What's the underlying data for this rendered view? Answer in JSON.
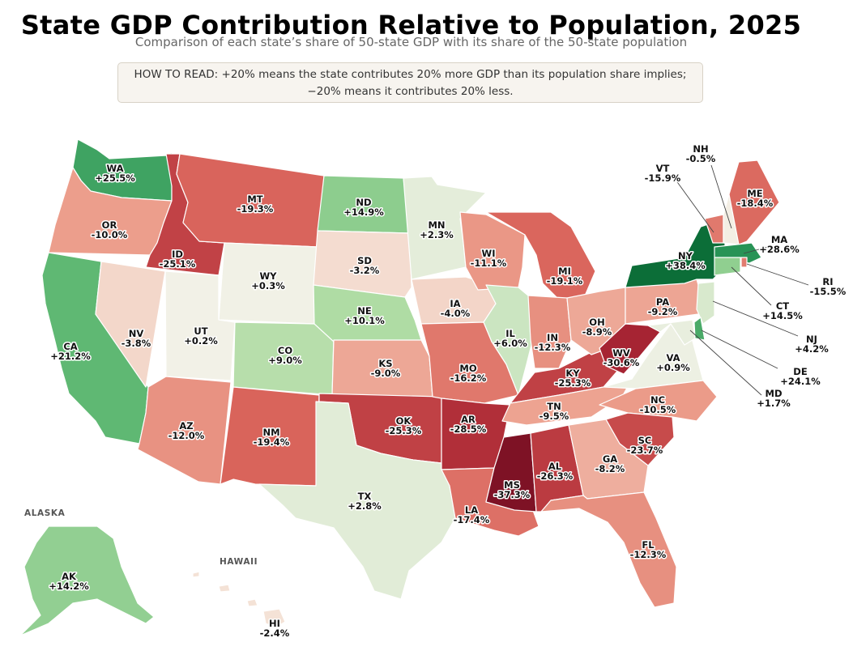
{
  "title": "State GDP Contribution Relative to Population, 2025",
  "subtitle": "Comparison of each state’s share of 50-state GDP with its share of the 50-state population",
  "how_to_read": {
    "line1": "HOW TO READ:  +20% means the state contributes 20% more GDP than its population share implies;",
    "line2": "−20% means it contributes 20% less."
  },
  "insets": {
    "alaska": "ALASKA",
    "hawaii": "HAWAII"
  },
  "colors": {
    "strong_negative": "#8b1a2b",
    "negative": "#d96459",
    "mild_negative": "#eea898",
    "neutral": "#f2efe6",
    "mild_positive": "#b9dfa8",
    "positive": "#5fb874",
    "strong_positive": "#0e6b35"
  },
  "states": [
    {
      "abbr": "WA",
      "label": "+25.5%",
      "value": 25.5
    },
    {
      "abbr": "OR",
      "label": "-10.0%",
      "value": -10.0
    },
    {
      "abbr": "CA",
      "label": "+21.2%",
      "value": 21.2
    },
    {
      "abbr": "ID",
      "label": "-25.1%",
      "value": -25.1
    },
    {
      "abbr": "NV",
      "label": "-3.8%",
      "value": -3.8
    },
    {
      "abbr": "MT",
      "label": "-19.3%",
      "value": -19.3
    },
    {
      "abbr": "WY",
      "label": "+0.3%",
      "value": 0.3
    },
    {
      "abbr": "UT",
      "label": "+0.2%",
      "value": 0.2
    },
    {
      "abbr": "AZ",
      "label": "-12.0%",
      "value": -12.0
    },
    {
      "abbr": "CO",
      "label": "+9.0%",
      "value": 9.0
    },
    {
      "abbr": "NM",
      "label": "-19.4%",
      "value": -19.4
    },
    {
      "abbr": "ND",
      "label": "+14.9%",
      "value": 14.9
    },
    {
      "abbr": "SD",
      "label": "-3.2%",
      "value": -3.2
    },
    {
      "abbr": "NE",
      "label": "+10.1%",
      "value": 10.1
    },
    {
      "abbr": "KS",
      "label": "-9.0%",
      "value": -9.0
    },
    {
      "abbr": "OK",
      "label": "-25.3%",
      "value": -25.3
    },
    {
      "abbr": "TX",
      "label": "+2.8%",
      "value": 2.8
    },
    {
      "abbr": "MN",
      "label": "+2.3%",
      "value": 2.3
    },
    {
      "abbr": "IA",
      "label": "-4.0%",
      "value": -4.0
    },
    {
      "abbr": "MO",
      "label": "-16.2%",
      "value": -16.2
    },
    {
      "abbr": "AR",
      "label": "-28.5%",
      "value": -28.5
    },
    {
      "abbr": "LA",
      "label": "-17.4%",
      "value": -17.4
    },
    {
      "abbr": "WI",
      "label": "-11.1%",
      "value": -11.1
    },
    {
      "abbr": "IL",
      "label": "+6.0%",
      "value": 6.0
    },
    {
      "abbr": "MS",
      "label": "-37.3%",
      "value": -37.3
    },
    {
      "abbr": "MI",
      "label": "-19.1%",
      "value": -19.1
    },
    {
      "abbr": "IN",
      "label": "-12.3%",
      "value": -12.3
    },
    {
      "abbr": "KY",
      "label": "-25.3%",
      "value": -25.3
    },
    {
      "abbr": "TN",
      "label": "-9.5%",
      "value": -9.5
    },
    {
      "abbr": "AL",
      "label": "-26.3%",
      "value": -26.3
    },
    {
      "abbr": "OH",
      "label": "-8.9%",
      "value": -8.9
    },
    {
      "abbr": "WV",
      "label": "-30.6%",
      "value": -30.6
    },
    {
      "abbr": "VA",
      "label": "+0.9%",
      "value": 0.9
    },
    {
      "abbr": "NC",
      "label": "-10.5%",
      "value": -10.5
    },
    {
      "abbr": "SC",
      "label": "-23.7%",
      "value": -23.7
    },
    {
      "abbr": "GA",
      "label": "-8.2%",
      "value": -8.2
    },
    {
      "abbr": "FL",
      "label": "-12.3%",
      "value": -12.3
    },
    {
      "abbr": "PA",
      "label": "-9.2%",
      "value": -9.2
    },
    {
      "abbr": "NY",
      "label": "+38.4%",
      "value": 38.4
    },
    {
      "abbr": "VT",
      "label": "-15.9%",
      "value": -15.9
    },
    {
      "abbr": "NH",
      "label": "-0.5%",
      "value": -0.5
    },
    {
      "abbr": "ME",
      "label": "-18.4%",
      "value": -18.4
    },
    {
      "abbr": "MA",
      "label": "+28.6%",
      "value": 28.6
    },
    {
      "abbr": "RI",
      "label": "-15.5%",
      "value": -15.5
    },
    {
      "abbr": "CT",
      "label": "+14.5%",
      "value": 14.5
    },
    {
      "abbr": "NJ",
      "label": "+4.2%",
      "value": 4.2
    },
    {
      "abbr": "DE",
      "label": "+24.1%",
      "value": 24.1
    },
    {
      "abbr": "MD",
      "label": "+1.7%",
      "value": 1.7
    },
    {
      "abbr": "AK",
      "label": "+14.2%",
      "value": 14.2
    },
    {
      "abbr": "HI",
      "label": "-2.4%",
      "value": -2.4
    }
  ]
}
